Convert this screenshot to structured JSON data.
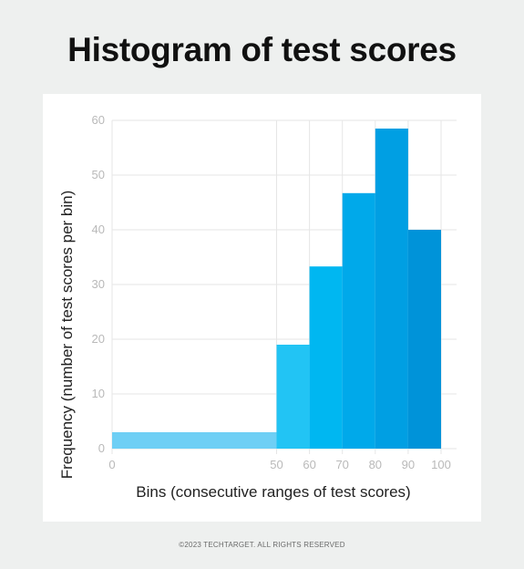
{
  "title": "Histogram of test scores",
  "footer": "©2023 TECHTARGET. ALL RIGHTS RESERVED",
  "chart_data": {
    "type": "bar",
    "title": "Histogram of test scores",
    "xlabel": "Bins (consecutive ranges of test scores)",
    "ylabel": "Frequency (number of test scores per bin)",
    "bins": [
      [
        0,
        50
      ],
      [
        50,
        60
      ],
      [
        60,
        70
      ],
      [
        70,
        80
      ],
      [
        80,
        90
      ],
      [
        90,
        100
      ]
    ],
    "values": [
      3,
      19,
      33.3,
      46.7,
      58.5,
      40
    ],
    "colors": [
      "#6ecff5",
      "#22c4f4",
      "#00b7f1",
      "#00a9ea",
      "#009fe3",
      "#0093d9"
    ],
    "xticks": [
      0,
      50,
      60,
      70,
      80,
      90,
      100
    ],
    "yticks": [
      0,
      10,
      20,
      30,
      40,
      50,
      60
    ],
    "xlim": [
      0,
      100
    ],
    "ylim": [
      0,
      60
    ],
    "grid": true
  }
}
